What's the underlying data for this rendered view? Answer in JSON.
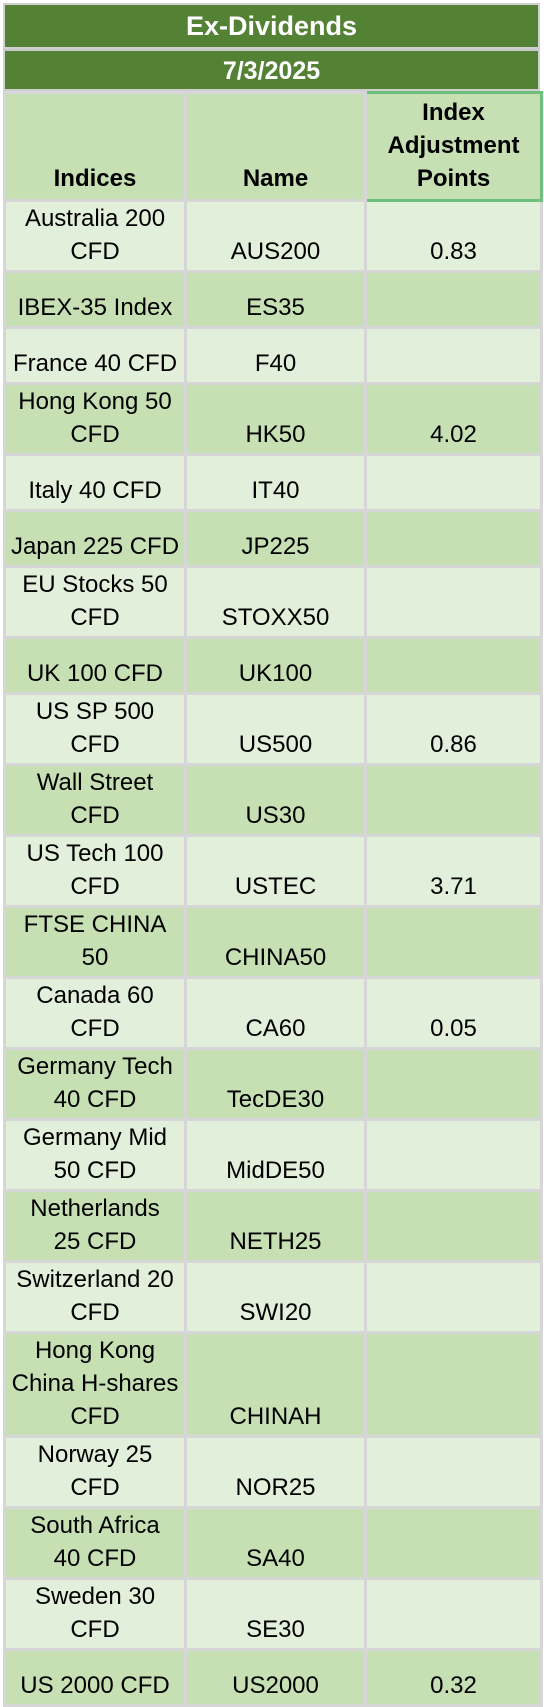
{
  "title": "Ex-Dividends",
  "date": "7/3/2025",
  "colors": {
    "header_band": "#548235",
    "header_cells": "#c6e0b4",
    "row_light": "#e2efda",
    "row_dark": "#c6e0b4"
  },
  "headers": {
    "indices": "Indices",
    "name": "Name",
    "points_line1": "Index",
    "points_line2": "Adjustment",
    "points_line3": "Points"
  },
  "rows": [
    {
      "lines": [
        "Australia 200",
        "CFD"
      ],
      "name": "AUS200",
      "points": "0.83"
    },
    {
      "lines": [
        "IBEX-35 Index"
      ],
      "name": "ES35",
      "points": ""
    },
    {
      "lines": [
        "France 40 CFD"
      ],
      "name": "F40",
      "points": ""
    },
    {
      "lines": [
        "Hong Kong 50",
        "CFD"
      ],
      "name": "HK50",
      "points": "4.02"
    },
    {
      "lines": [
        "Italy 40 CFD"
      ],
      "name": "IT40",
      "points": ""
    },
    {
      "lines": [
        "Japan 225 CFD"
      ],
      "name": "JP225",
      "points": ""
    },
    {
      "lines": [
        "EU Stocks 50",
        "CFD"
      ],
      "name": "STOXX50",
      "points": ""
    },
    {
      "lines": [
        "UK 100 CFD"
      ],
      "name": "UK100",
      "points": ""
    },
    {
      "lines": [
        "US SP 500 CFD"
      ],
      "name": "US500",
      "points": "0.86"
    },
    {
      "lines": [
        "Wall Street",
        "CFD"
      ],
      "name": "US30",
      "points": ""
    },
    {
      "lines": [
        "US Tech 100",
        "CFD"
      ],
      "name": "USTEC",
      "points": "3.71"
    },
    {
      "lines": [
        "FTSE CHINA 50"
      ],
      "name": "CHINA50",
      "points": ""
    },
    {
      "lines": [
        "Canada 60 CFD"
      ],
      "name": "CA60",
      "points": "0.05"
    },
    {
      "lines": [
        "Germany Tech",
        "40 CFD"
      ],
      "name": "TecDE30",
      "points": ""
    },
    {
      "lines": [
        "Germany Mid",
        "50 CFD"
      ],
      "name": "MidDE50",
      "points": ""
    },
    {
      "lines": [
        "Netherlands",
        "25 CFD"
      ],
      "name": "NETH25",
      "points": ""
    },
    {
      "lines": [
        "Switzerland 20",
        "CFD"
      ],
      "name": "SWI20",
      "points": ""
    },
    {
      "lines": [
        "Hong Kong",
        "China H-shares",
        "CFD"
      ],
      "name": "CHINAH",
      "points": ""
    },
    {
      "lines": [
        "Norway 25",
        "CFD"
      ],
      "name": "NOR25",
      "points": ""
    },
    {
      "lines": [
        "South Africa",
        "40 CFD"
      ],
      "name": "SA40",
      "points": ""
    },
    {
      "lines": [
        "Sweden 30",
        "CFD"
      ],
      "name": "SE30",
      "points": ""
    },
    {
      "lines": [
        "US 2000 CFD"
      ],
      "name": "US2000",
      "points": "0.32"
    }
  ]
}
